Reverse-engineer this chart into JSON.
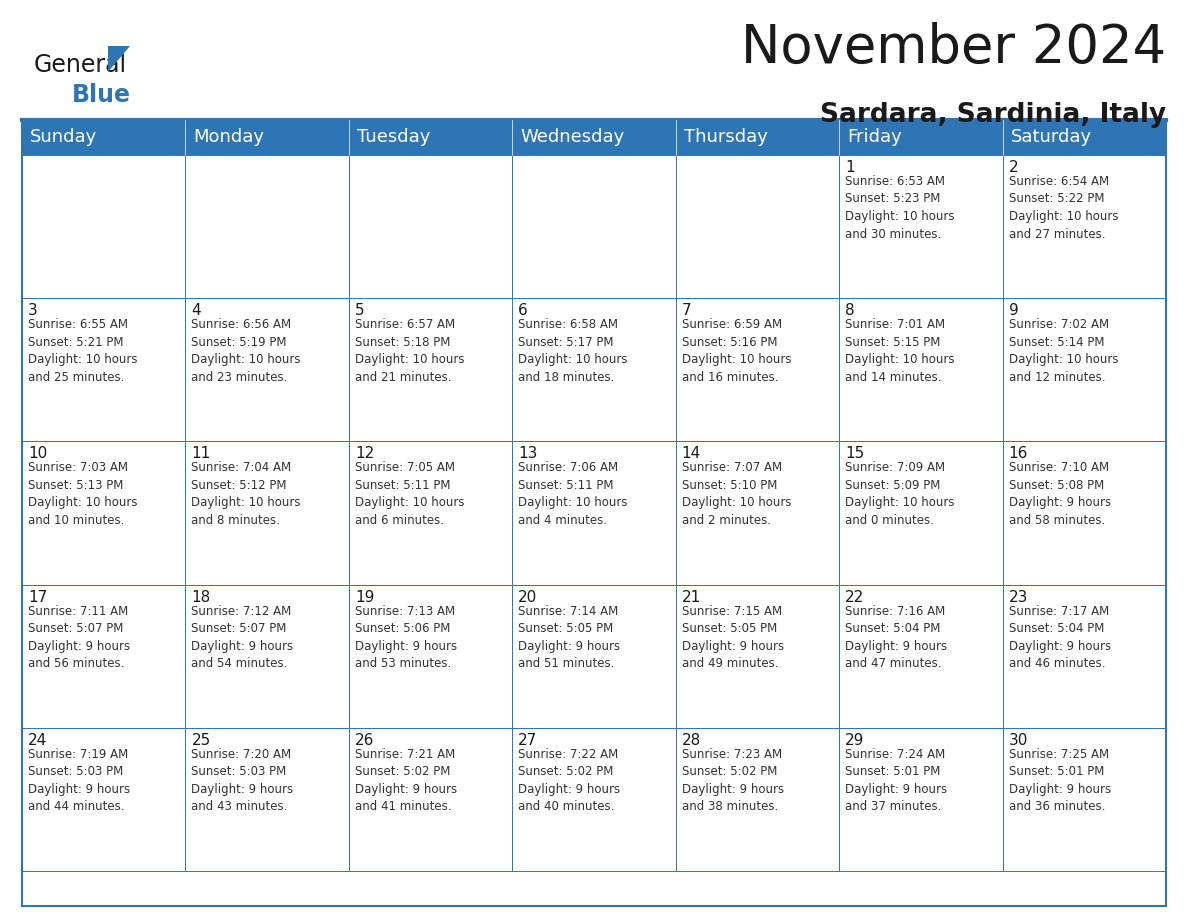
{
  "title": "November 2024",
  "subtitle": "Sardara, Sardinia, Italy",
  "header_color": "#2E75B6",
  "header_text_color": "#FFFFFF",
  "cell_bg_color": "#FFFFFF",
  "border_color": "#2E75B6",
  "text_color": "#1a1a1a",
  "cell_text_color": "#333333",
  "day_names": [
    "Sunday",
    "Monday",
    "Tuesday",
    "Wednesday",
    "Thursday",
    "Friday",
    "Saturday"
  ],
  "title_fontsize": 38,
  "subtitle_fontsize": 19,
  "header_fontsize": 13,
  "day_num_fontsize": 11,
  "cell_fontsize": 8.5,
  "logo_general_fontsize": 17,
  "logo_blue_fontsize": 17,
  "weeks": [
    [
      {
        "day": "",
        "info": ""
      },
      {
        "day": "",
        "info": ""
      },
      {
        "day": "",
        "info": ""
      },
      {
        "day": "",
        "info": ""
      },
      {
        "day": "",
        "info": ""
      },
      {
        "day": "1",
        "info": "Sunrise: 6:53 AM\nSunset: 5:23 PM\nDaylight: 10 hours\nand 30 minutes."
      },
      {
        "day": "2",
        "info": "Sunrise: 6:54 AM\nSunset: 5:22 PM\nDaylight: 10 hours\nand 27 minutes."
      }
    ],
    [
      {
        "day": "3",
        "info": "Sunrise: 6:55 AM\nSunset: 5:21 PM\nDaylight: 10 hours\nand 25 minutes."
      },
      {
        "day": "4",
        "info": "Sunrise: 6:56 AM\nSunset: 5:19 PM\nDaylight: 10 hours\nand 23 minutes."
      },
      {
        "day": "5",
        "info": "Sunrise: 6:57 AM\nSunset: 5:18 PM\nDaylight: 10 hours\nand 21 minutes."
      },
      {
        "day": "6",
        "info": "Sunrise: 6:58 AM\nSunset: 5:17 PM\nDaylight: 10 hours\nand 18 minutes."
      },
      {
        "day": "7",
        "info": "Sunrise: 6:59 AM\nSunset: 5:16 PM\nDaylight: 10 hours\nand 16 minutes."
      },
      {
        "day": "8",
        "info": "Sunrise: 7:01 AM\nSunset: 5:15 PM\nDaylight: 10 hours\nand 14 minutes."
      },
      {
        "day": "9",
        "info": "Sunrise: 7:02 AM\nSunset: 5:14 PM\nDaylight: 10 hours\nand 12 minutes."
      }
    ],
    [
      {
        "day": "10",
        "info": "Sunrise: 7:03 AM\nSunset: 5:13 PM\nDaylight: 10 hours\nand 10 minutes."
      },
      {
        "day": "11",
        "info": "Sunrise: 7:04 AM\nSunset: 5:12 PM\nDaylight: 10 hours\nand 8 minutes."
      },
      {
        "day": "12",
        "info": "Sunrise: 7:05 AM\nSunset: 5:11 PM\nDaylight: 10 hours\nand 6 minutes."
      },
      {
        "day": "13",
        "info": "Sunrise: 7:06 AM\nSunset: 5:11 PM\nDaylight: 10 hours\nand 4 minutes."
      },
      {
        "day": "14",
        "info": "Sunrise: 7:07 AM\nSunset: 5:10 PM\nDaylight: 10 hours\nand 2 minutes."
      },
      {
        "day": "15",
        "info": "Sunrise: 7:09 AM\nSunset: 5:09 PM\nDaylight: 10 hours\nand 0 minutes."
      },
      {
        "day": "16",
        "info": "Sunrise: 7:10 AM\nSunset: 5:08 PM\nDaylight: 9 hours\nand 58 minutes."
      }
    ],
    [
      {
        "day": "17",
        "info": "Sunrise: 7:11 AM\nSunset: 5:07 PM\nDaylight: 9 hours\nand 56 minutes."
      },
      {
        "day": "18",
        "info": "Sunrise: 7:12 AM\nSunset: 5:07 PM\nDaylight: 9 hours\nand 54 minutes."
      },
      {
        "day": "19",
        "info": "Sunrise: 7:13 AM\nSunset: 5:06 PM\nDaylight: 9 hours\nand 53 minutes."
      },
      {
        "day": "20",
        "info": "Sunrise: 7:14 AM\nSunset: 5:05 PM\nDaylight: 9 hours\nand 51 minutes."
      },
      {
        "day": "21",
        "info": "Sunrise: 7:15 AM\nSunset: 5:05 PM\nDaylight: 9 hours\nand 49 minutes."
      },
      {
        "day": "22",
        "info": "Sunrise: 7:16 AM\nSunset: 5:04 PM\nDaylight: 9 hours\nand 47 minutes."
      },
      {
        "day": "23",
        "info": "Sunrise: 7:17 AM\nSunset: 5:04 PM\nDaylight: 9 hours\nand 46 minutes."
      }
    ],
    [
      {
        "day": "24",
        "info": "Sunrise: 7:19 AM\nSunset: 5:03 PM\nDaylight: 9 hours\nand 44 minutes."
      },
      {
        "day": "25",
        "info": "Sunrise: 7:20 AM\nSunset: 5:03 PM\nDaylight: 9 hours\nand 43 minutes."
      },
      {
        "day": "26",
        "info": "Sunrise: 7:21 AM\nSunset: 5:02 PM\nDaylight: 9 hours\nand 41 minutes."
      },
      {
        "day": "27",
        "info": "Sunrise: 7:22 AM\nSunset: 5:02 PM\nDaylight: 9 hours\nand 40 minutes."
      },
      {
        "day": "28",
        "info": "Sunrise: 7:23 AM\nSunset: 5:02 PM\nDaylight: 9 hours\nand 38 minutes."
      },
      {
        "day": "29",
        "info": "Sunrise: 7:24 AM\nSunset: 5:01 PM\nDaylight: 9 hours\nand 37 minutes."
      },
      {
        "day": "30",
        "info": "Sunrise: 7:25 AM\nSunset: 5:01 PM\nDaylight: 9 hours\nand 36 minutes."
      }
    ]
  ]
}
